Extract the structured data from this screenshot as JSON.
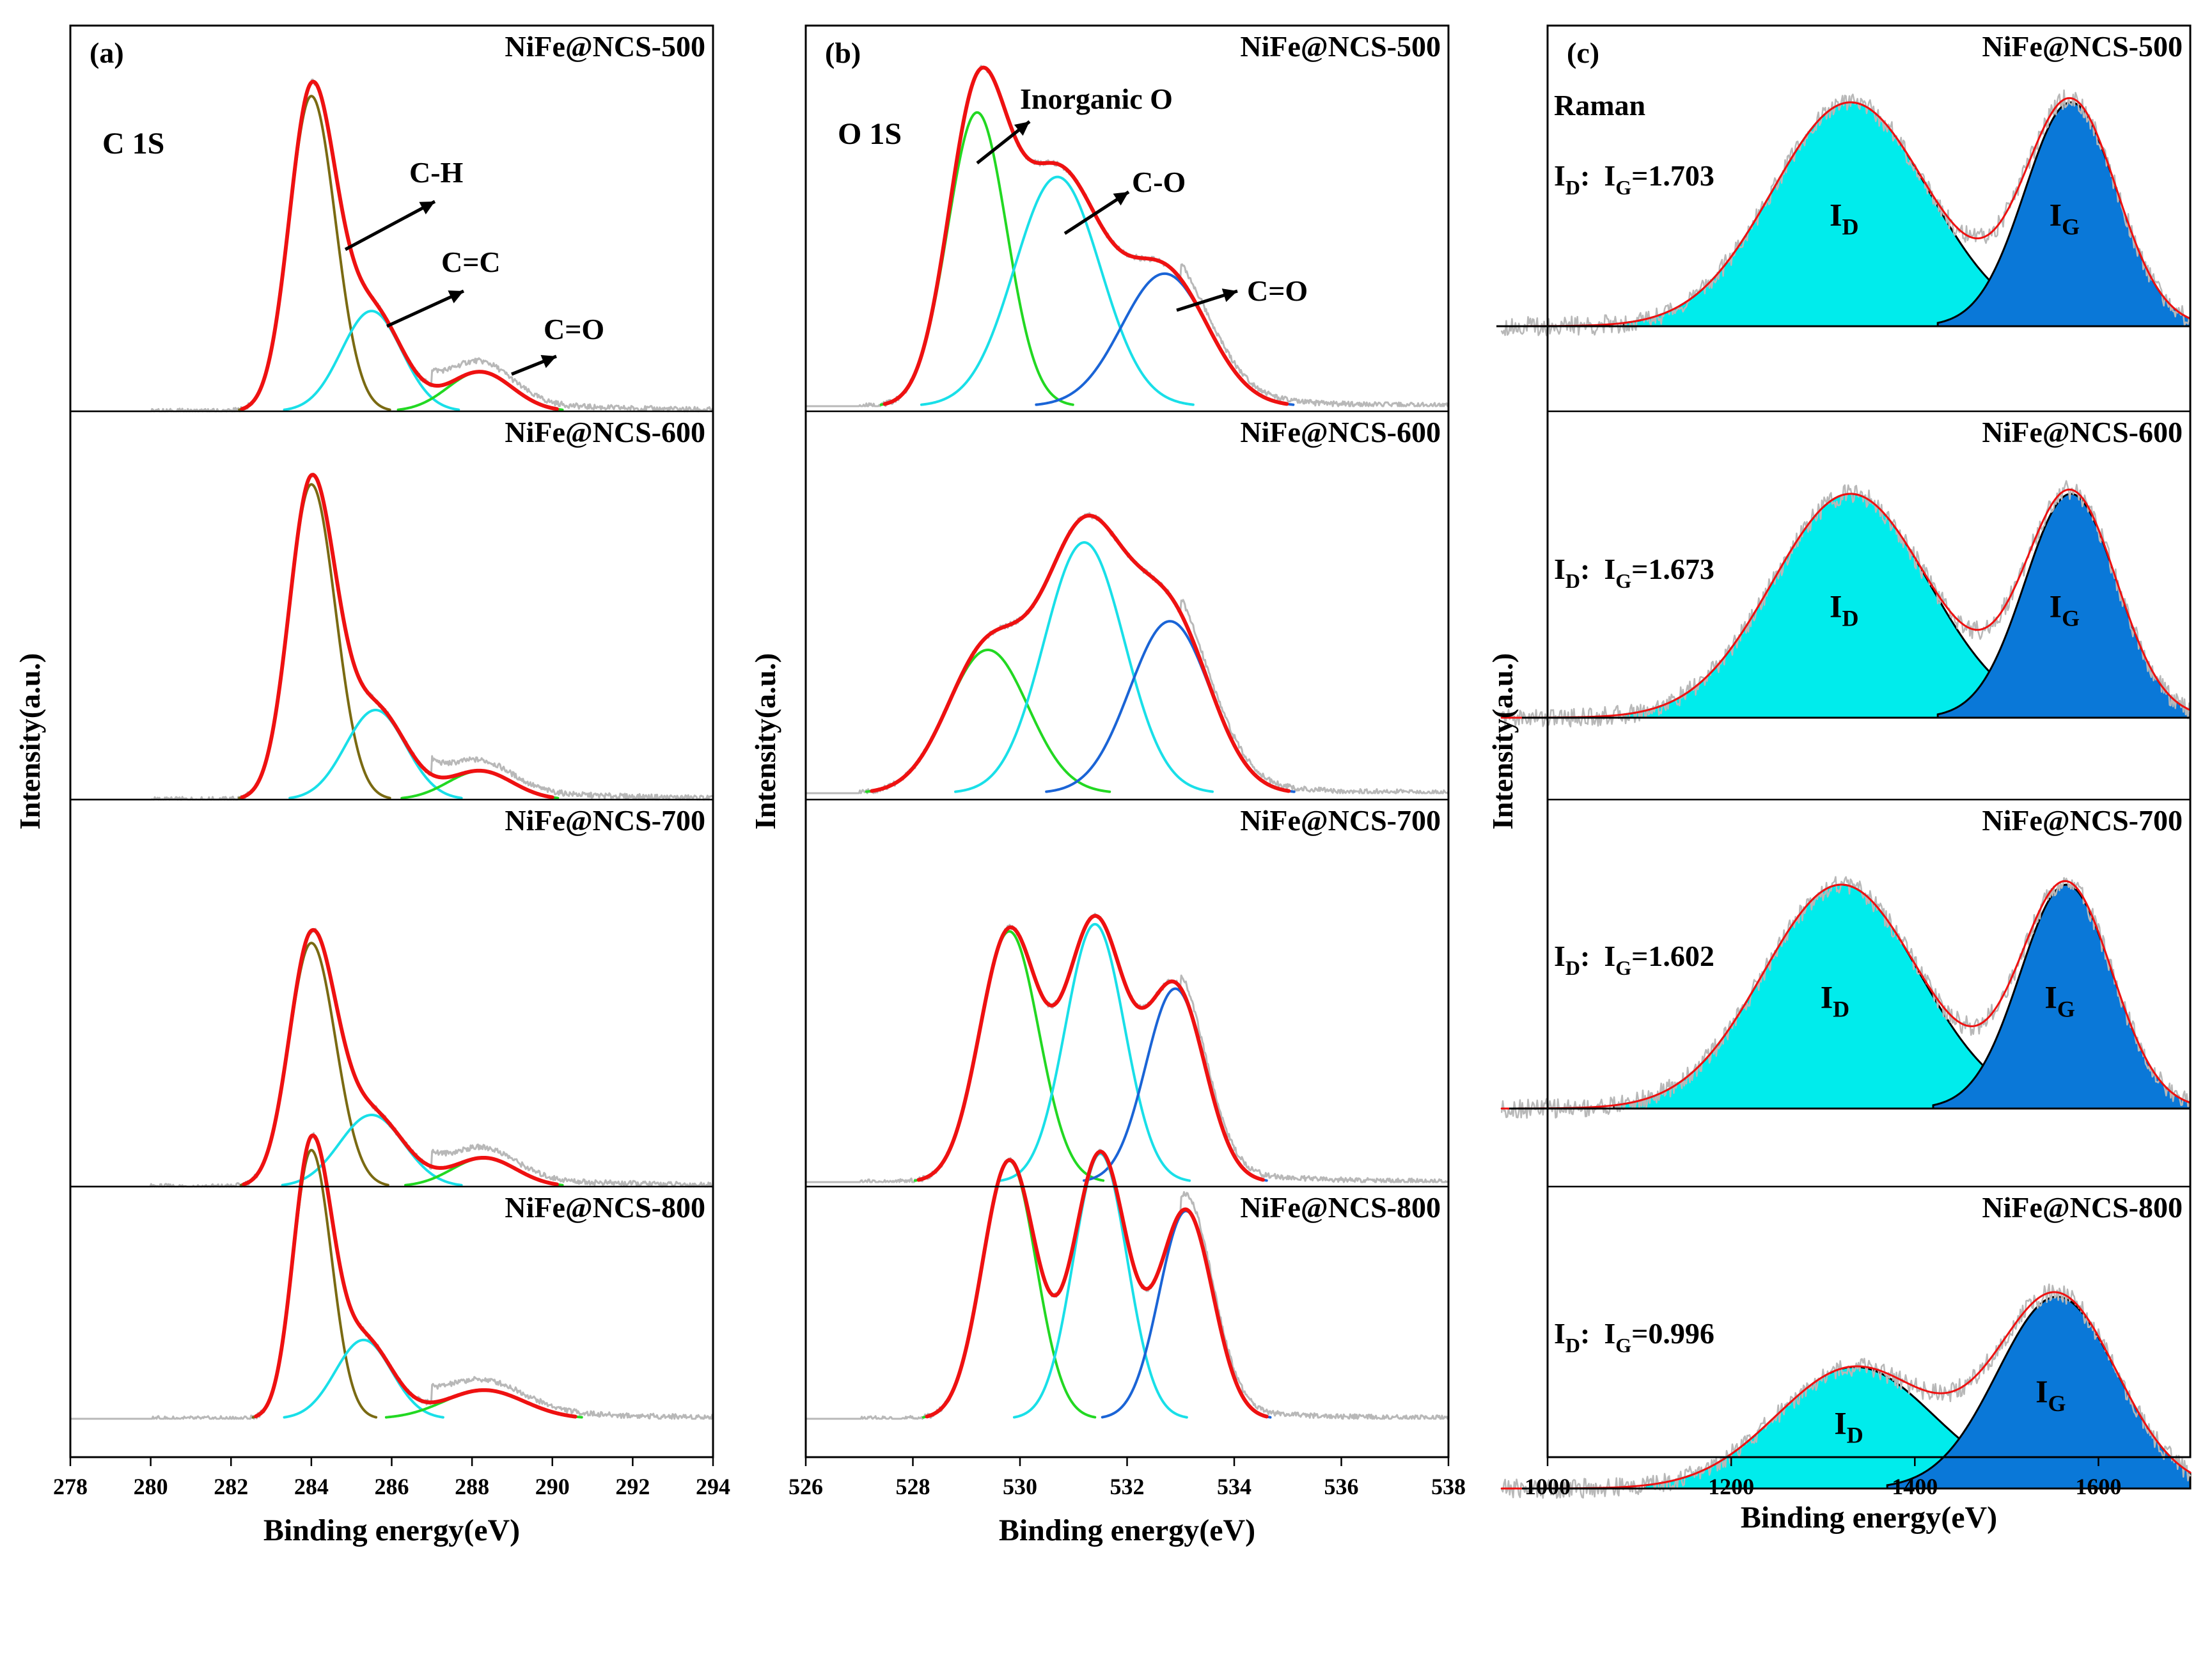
{
  "chart_data": [
    {
      "type": "line",
      "panel_label": "(a)",
      "spectrum_label": "C 1S",
      "xlabel": "Binding energy(eV)",
      "ylabel": "Intensity(a.u.)",
      "xlim": [
        278,
        294
      ],
      "xticks": [
        278,
        280,
        282,
        284,
        286,
        288,
        290,
        292,
        294
      ],
      "annotations": [
        "C-H",
        "C=C",
        "C=O"
      ],
      "subplots": [
        {
          "title": "NiFe@NCS-500",
          "components": [
            {
              "name": "C-H",
              "color": "#7a6a12",
              "center": 284.0,
              "height": 0.88,
              "width_left": 0.55,
              "width_right": 0.6
            },
            {
              "name": "C=C",
              "color": "#19dfe8",
              "center": 285.5,
              "height": 0.28,
              "width_left": 0.75,
              "width_right": 0.75
            },
            {
              "name": "C=O",
              "color": "#22d822",
              "center": 288.2,
              "height": 0.11,
              "width_left": 0.8,
              "width_right": 0.8
            }
          ]
        },
        {
          "title": "NiFe@NCS-600",
          "components": [
            {
              "name": "C-H",
              "color": "#7a6a12",
              "center": 284.0,
              "height": 0.88,
              "width_left": 0.55,
              "width_right": 0.6
            },
            {
              "name": "C=C",
              "color": "#19dfe8",
              "center": 285.6,
              "height": 0.25,
              "width_left": 0.75,
              "width_right": 0.75
            },
            {
              "name": "C=O",
              "color": "#22d822",
              "center": 288.2,
              "height": 0.08,
              "width_left": 0.8,
              "width_right": 0.8
            }
          ]
        },
        {
          "title": "NiFe@NCS-700",
          "components": [
            {
              "name": "C-H",
              "color": "#7a6a12",
              "center": 284.0,
              "height": 0.68,
              "width_left": 0.55,
              "width_right": 0.6
            },
            {
              "name": "C=C",
              "color": "#19dfe8",
              "center": 285.5,
              "height": 0.2,
              "width_left": 0.8,
              "width_right": 0.8
            },
            {
              "name": "C=O",
              "color": "#22d822",
              "center": 288.3,
              "height": 0.08,
              "width_left": 0.8,
              "width_right": 0.8
            }
          ]
        },
        {
          "title": "NiFe@NCS-800",
          "components": [
            {
              "name": "C-H",
              "color": "#7a6a12",
              "center": 284.0,
              "height": 0.75,
              "width_left": 0.45,
              "width_right": 0.5
            },
            {
              "name": "C=C",
              "color": "#19dfe8",
              "center": 285.3,
              "height": 0.22,
              "width_left": 0.7,
              "width_right": 0.7
            },
            {
              "name": "C=O",
              "color": "#22d822",
              "center": 288.3,
              "height": 0.08,
              "width_left": 1.0,
              "width_right": 1.0
            }
          ]
        }
      ]
    },
    {
      "type": "line",
      "panel_label": "(b)",
      "spectrum_label": "O 1S",
      "xlabel": "Binding energy(eV)",
      "ylabel": "Intensity(a.u.)",
      "xlim": [
        526,
        538
      ],
      "xticks": [
        526,
        528,
        530,
        532,
        534,
        536,
        538
      ],
      "annotations": [
        "Inorganic O",
        "C-O",
        "C=O"
      ],
      "subplots": [
        {
          "title": "NiFe@NCS-500",
          "components": [
            {
              "name": "Inorganic O",
              "color": "#22d822",
              "center": 529.2,
              "height": 0.82,
              "width_left": 0.55,
              "width_right": 0.55
            },
            {
              "name": "C-O",
              "color": "#19dfe8",
              "center": 530.7,
              "height": 0.64,
              "width_left": 0.8,
              "width_right": 0.8
            },
            {
              "name": "C=O",
              "color": "#1a64d6",
              "center": 532.7,
              "height": 0.37,
              "width_left": 0.8,
              "width_right": 0.8
            }
          ]
        },
        {
          "title": "NiFe@NCS-600",
          "components": [
            {
              "name": "Inorganic O",
              "color": "#22d822",
              "center": 529.4,
              "height": 0.4,
              "width_left": 0.75,
              "width_right": 0.75
            },
            {
              "name": "C-O",
              "color": "#19dfe8",
              "center": 531.2,
              "height": 0.7,
              "width_left": 0.75,
              "width_right": 0.75
            },
            {
              "name": "C=O",
              "color": "#1a64d6",
              "center": 532.8,
              "height": 0.48,
              "width_left": 0.75,
              "width_right": 0.75
            }
          ]
        },
        {
          "title": "NiFe@NCS-700",
          "components": [
            {
              "name": "Inorganic O",
              "color": "#22d822",
              "center": 529.8,
              "height": 0.7,
              "width_left": 0.55,
              "width_right": 0.55
            },
            {
              "name": "C-O",
              "color": "#19dfe8",
              "center": 531.4,
              "height": 0.72,
              "width_left": 0.55,
              "width_right": 0.55
            },
            {
              "name": "C=O",
              "color": "#1a64d6",
              "center": 532.9,
              "height": 0.54,
              "width_left": 0.55,
              "width_right": 0.55
            }
          ]
        },
        {
          "title": "NiFe@NCS-800",
          "components": [
            {
              "name": "Inorganic O",
              "color": "#22d822",
              "center": 529.8,
              "height": 0.72,
              "width_left": 0.5,
              "width_right": 0.5
            },
            {
              "name": "C-O",
              "color": "#19dfe8",
              "center": 531.5,
              "height": 0.74,
              "width_left": 0.5,
              "width_right": 0.5
            },
            {
              "name": "C=O",
              "color": "#1a64d6",
              "center": 533.1,
              "height": 0.58,
              "width_left": 0.5,
              "width_right": 0.5
            }
          ]
        }
      ]
    },
    {
      "type": "area",
      "panel_label": "(c)",
      "spectrum_label": "Raman",
      "xlabel": "Binding energy(eV)",
      "ylabel": "Intensity(a.u.)",
      "xlim": [
        1000,
        1700
      ],
      "xticks": [
        1000,
        1200,
        1400,
        1600
      ],
      "subplots": [
        {
          "title": "NiFe@NCS-500",
          "ratio_value": "1.703",
          "bands": [
            {
              "name": "D",
              "color": "#00ecec",
              "center": 1330,
              "height": 0.7,
              "width": 85
            },
            {
              "name": "G",
              "color": "#0a78d8",
              "center": 1570,
              "height": 0.7,
              "width": 50
            }
          ]
        },
        {
          "title": "NiFe@NCS-600",
          "ratio_value": "1.673",
          "bands": [
            {
              "name": "D",
              "color": "#00ecec",
              "center": 1330,
              "height": 0.7,
              "width": 85
            },
            {
              "name": "G",
              "color": "#0a78d8",
              "center": 1570,
              "height": 0.7,
              "width": 50
            }
          ]
        },
        {
          "title": "NiFe@NCS-700",
          "ratio_value": "1.602",
          "bands": [
            {
              "name": "D",
              "color": "#00ecec",
              "center": 1320,
              "height": 0.7,
              "width": 85
            },
            {
              "name": "G",
              "color": "#0a78d8",
              "center": 1565,
              "height": 0.7,
              "width": 50
            }
          ]
        },
        {
          "title": "NiFe@NCS-800",
          "ratio_value": "0.996",
          "bands": [
            {
              "name": "D",
              "color": "#00ecec",
              "center": 1335,
              "height": 0.38,
              "width": 85
            },
            {
              "name": "G",
              "color": "#0a78d8",
              "center": 1555,
              "height": 0.6,
              "width": 65
            }
          ]
        }
      ]
    }
  ],
  "colors": {
    "envelope": "#ee1111",
    "raw_data": "#b8b8b8",
    "raman_fit": "#000000"
  },
  "ratio_labels": {
    "d_sub": "D",
    "g_sub": "G",
    "colon": ":",
    "eq": "="
  },
  "band_letter": "I"
}
